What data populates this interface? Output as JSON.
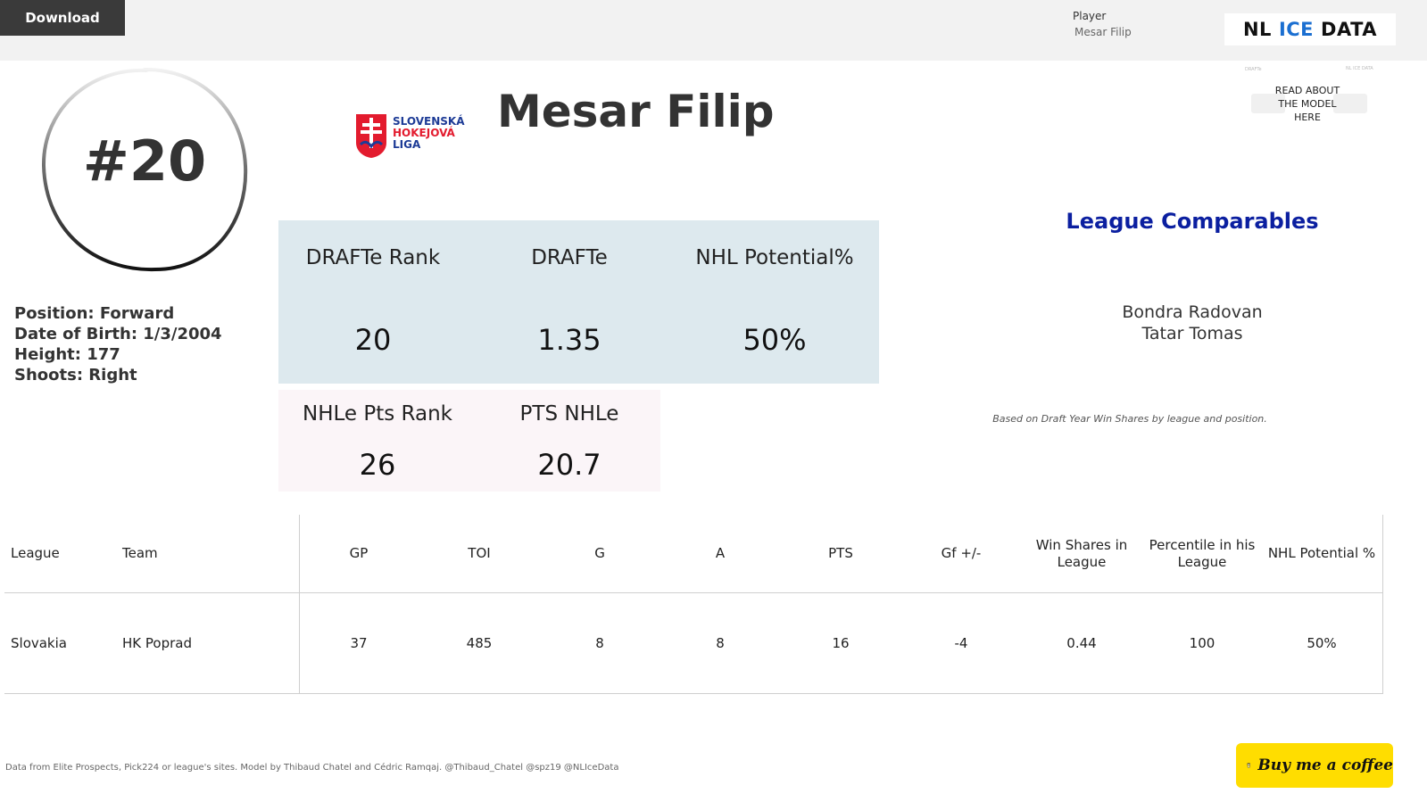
{
  "toolbar": {
    "download_label": "Download"
  },
  "filter": {
    "label": "Player",
    "value": "Mesar Filip"
  },
  "brand": {
    "part1": "NL",
    "part2": "ICE",
    "part3": "DATA",
    "accent_color": "#1b6fd1"
  },
  "player": {
    "jersey_number": "#20",
    "name": "Mesar Filip",
    "position": "Position: Forward",
    "birth": "Date of Birth: 1/3/2004",
    "height": "Height: 177",
    "shoots": "Shoots: Right"
  },
  "league_logo": {
    "line1": "SLOVENSKÁ",
    "line2": "HOKEJOVÁ",
    "line3": "LIGA",
    "icon": "shl-shield-logo"
  },
  "model_link": {
    "text": "READ ABOUT THE MODEL HERE",
    "thumb_text_left": "DRAFTe",
    "thumb_text_right": "NL ICE DATA"
  },
  "kpis": {
    "drafte_rank": {
      "label": "DRAFTe Rank",
      "value": "20"
    },
    "drafte": {
      "label": "DRAFTe",
      "value": "1.35"
    },
    "nhl_potential": {
      "label": "NHL Potential%",
      "value": "50%"
    },
    "nhle_pts_rank": {
      "label": "NHLe Pts Rank",
      "value": "26"
    },
    "pts_nhle": {
      "label": "PTS NHLe",
      "value": "20.7"
    }
  },
  "comparables": {
    "title": "League Comparables",
    "players": [
      "Bondra Radovan",
      "Tatar Tomas"
    ],
    "note": "Based on Draft Year Win Shares by league and position.",
    "title_color": "#0b1fa0"
  },
  "stats_table": {
    "headers": [
      "League",
      "Team",
      "GP",
      "TOI",
      "G",
      "A",
      "PTS",
      "Gf +/-",
      "Win Shares in League",
      "Percentile in his League",
      "NHL Potential %"
    ],
    "rows": [
      [
        "Slovakia",
        "HK Poprad",
        "37",
        "485",
        "8",
        "8",
        "16",
        "-4",
        "0.44",
        "100",
        "50%"
      ]
    ]
  },
  "footer": {
    "credit": "Data from Elite Prospects, Pick224 or league's sites. Model by Thibaud Chatel and Cédric Ramqaj. @Thibaud_Chatel @spz19 @NLIceData",
    "coffee_label": "Buy me a coffee",
    "coffee_icon": "coffee-cup-icon",
    "coffee_color": "#ffdd00"
  }
}
